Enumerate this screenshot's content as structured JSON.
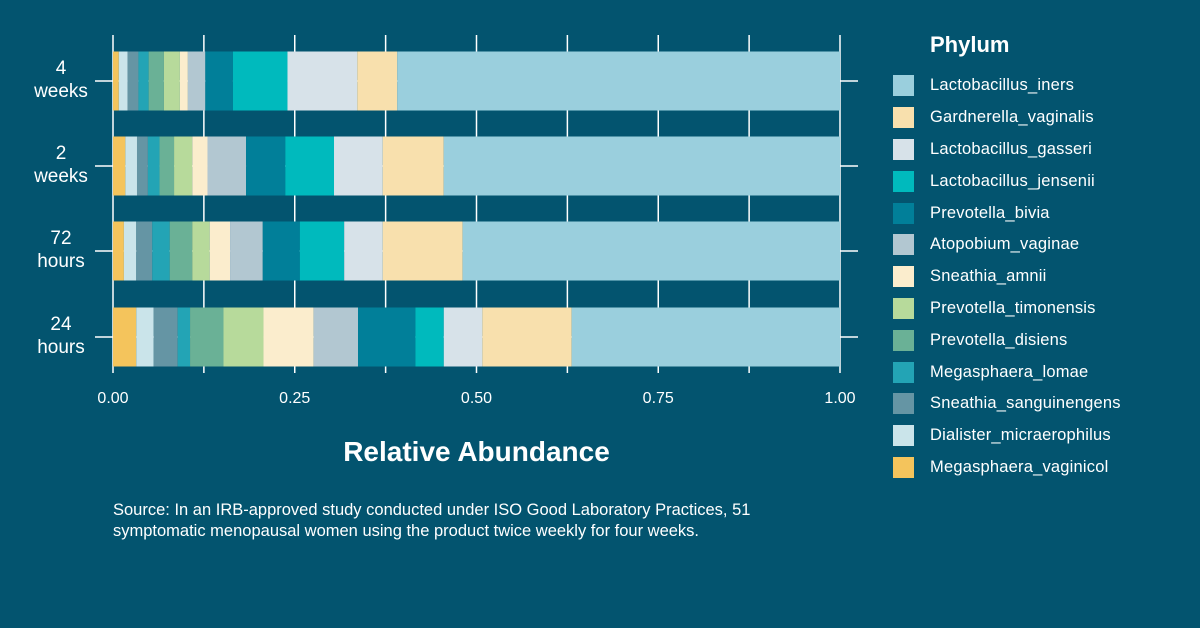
{
  "chart_data": {
    "type": "bar",
    "orientation": "horizontal-stacked",
    "title": "",
    "xlabel": "Relative Abundance",
    "ylabel": "",
    "xlim": [
      0,
      1
    ],
    "x_ticks": [
      "0.00",
      "0.25",
      "0.50",
      "0.75",
      "1.00"
    ],
    "x_tick_values": [
      0,
      0.25,
      0.5,
      0.75,
      1.0
    ],
    "minor_gridlines": [
      0.125,
      0.375,
      0.625,
      0.875
    ],
    "grid": true,
    "categories": [
      "4 weeks",
      "2 weeks",
      "72 hours",
      "24 hours"
    ],
    "category_labels": [
      [
        "4",
        "weeks"
      ],
      [
        "2",
        "weeks"
      ],
      [
        "72",
        "hours"
      ],
      [
        "24",
        "hours"
      ]
    ],
    "legend_title": "Phylum",
    "legend_position": "right",
    "series": [
      {
        "name": "Megasphaera_vaginicol",
        "color": "#f4c45c",
        "values": [
          0.008,
          0.017,
          0.015,
          0.032
        ]
      },
      {
        "name": "Dialister_micraerophilus",
        "color": "#cae4ea",
        "values": [
          0.012,
          0.016,
          0.017,
          0.024
        ]
      },
      {
        "name": "Sneathia_sanguinengens",
        "color": "#6595a4",
        "values": [
          0.015,
          0.015,
          0.022,
          0.033
        ]
      },
      {
        "name": "Megasphaera_lomae",
        "color": "#23a4b5",
        "values": [
          0.014,
          0.016,
          0.024,
          0.017
        ]
      },
      {
        "name": "Prevotella_disiens",
        "color": "#6ab196",
        "values": [
          0.021,
          0.02,
          0.031,
          0.046
        ]
      },
      {
        "name": "Prevotella_timonensis",
        "color": "#b7da9b",
        "values": [
          0.022,
          0.025,
          0.024,
          0.055
        ]
      },
      {
        "name": "Sneathia_amnii",
        "color": "#fbedcd",
        "values": [
          0.011,
          0.021,
          0.028,
          0.069
        ]
      },
      {
        "name": "Atopobium_vaginae",
        "color": "#b2c7d1",
        "values": [
          0.024,
          0.053,
          0.045,
          0.061
        ]
      },
      {
        "name": "Prevotella_bivia",
        "color": "#017f99",
        "values": [
          0.038,
          0.054,
          0.051,
          0.079
        ]
      },
      {
        "name": "Lactobacillus_jensenii",
        "color": "#00babd",
        "values": [
          0.075,
          0.067,
          0.061,
          0.039
        ]
      },
      {
        "name": "Lactobacillus_gasseri",
        "color": "#d7e2e9",
        "values": [
          0.096,
          0.067,
          0.053,
          0.053
        ]
      },
      {
        "name": "Gardnerella_vaginalis",
        "color": "#f8e0ad",
        "values": [
          0.055,
          0.084,
          0.11,
          0.123
        ]
      },
      {
        "name": "Lactobacillus_iners",
        "color": "#9acfdd",
        "values": [
          0.609,
          0.545,
          0.519,
          0.369
        ]
      }
    ],
    "legend_order": [
      "Lactobacillus_iners",
      "Gardnerella_vaginalis",
      "Lactobacillus_gasseri",
      "Lactobacillus_jensenii",
      "Prevotella_bivia",
      "Atopobium_vaginae",
      "Sneathia_amnii",
      "Prevotella_timonensis",
      "Prevotella_disiens",
      "Megasphaera_lomae",
      "Sneathia_sanguinengens",
      "Dialister_micraerophilus",
      "Megasphaera_vaginicol"
    ]
  },
  "colors": {
    "background": "#03546f",
    "text": "#ffffff",
    "grid": "#ffffff"
  },
  "source_text": "Source: In an IRB-approved study conducted under ISO Good Laboratory Practices, 51 symptomatic menopausal women using the product twice weekly for four weeks."
}
